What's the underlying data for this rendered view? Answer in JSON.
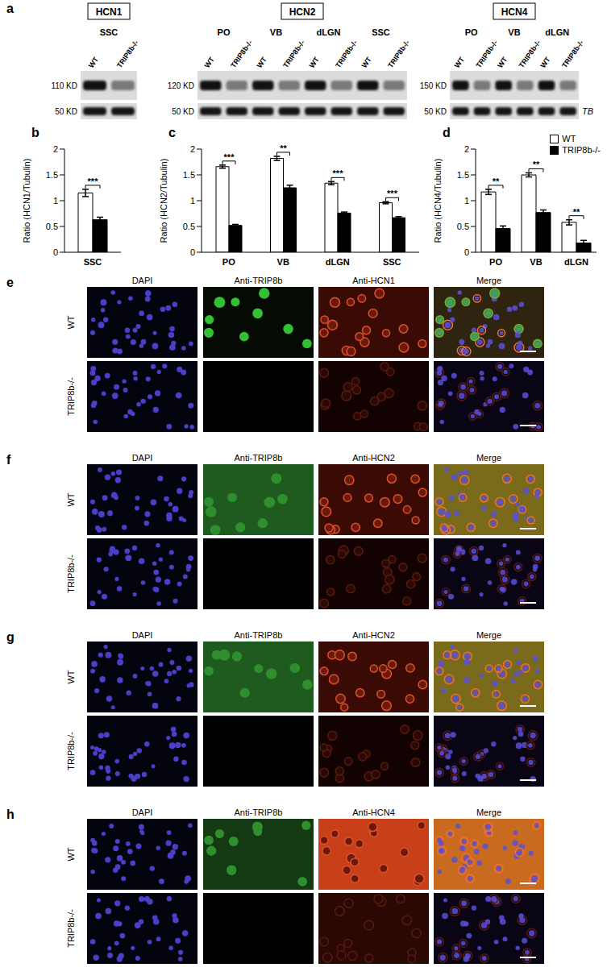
{
  "blot": {
    "label": "a",
    "lanes": [
      "WT",
      "TRIP8b-/-"
    ],
    "loading": {
      "kd": "50 KD",
      "name": "TB"
    },
    "groups": [
      {
        "title": "HCN1",
        "kd": "110 KD",
        "regions": [
          "SSC"
        ]
      },
      {
        "title": "HCN2",
        "kd": "120 KD",
        "regions": [
          "PO",
          "VB",
          "dLGN",
          "SSC"
        ]
      },
      {
        "title": "HCN4",
        "kd": "150 KD",
        "regions": [
          "PO",
          "VB",
          "dLGN"
        ]
      }
    ]
  },
  "chart_data": [
    {
      "label": "b",
      "type": "bar",
      "y_label": "Ratio (HCN1/Tubulin)",
      "categories": [
        "SSC"
      ],
      "series": [
        {
          "name": "WT",
          "color": "#ffffff",
          "values": [
            1.15
          ],
          "errors": [
            0.07
          ]
        },
        {
          "name": "TRIP8b-/-",
          "color": "#000000",
          "values": [
            0.63
          ],
          "errors": [
            0.05
          ]
        }
      ],
      "significance": [
        "***"
      ],
      "ylim": [
        0,
        2
      ],
      "yticks": [
        0,
        0.5,
        1,
        1.5,
        2
      ]
    },
    {
      "label": "c",
      "type": "bar",
      "y_label": "Ratio (HCN2/Tubulin)",
      "categories": [
        "PO",
        "VB",
        "dLGN",
        "SSC"
      ],
      "series": [
        {
          "name": "WT",
          "color": "#ffffff",
          "values": [
            1.66,
            1.82,
            1.34,
            0.96
          ],
          "errors": [
            0.03,
            0.04,
            0.03,
            0.02
          ]
        },
        {
          "name": "TRIP8b-/-",
          "color": "#000000",
          "values": [
            0.52,
            1.25,
            0.76,
            0.67
          ],
          "errors": [
            0.02,
            0.05,
            0.02,
            0.02
          ]
        }
      ],
      "significance": [
        "***",
        "**",
        "***",
        "***"
      ],
      "ylim": [
        0,
        2
      ],
      "yticks": [
        0,
        0.5,
        1,
        1.5,
        2
      ]
    },
    {
      "label": "d",
      "type": "bar",
      "y_label": "Ratio (HCN4/Tubulin)",
      "categories": [
        "PO",
        "VB",
        "dLGN"
      ],
      "series": [
        {
          "name": "WT",
          "color": "#ffffff",
          "values": [
            1.17,
            1.5,
            0.58
          ],
          "errors": [
            0.05,
            0.04,
            0.05
          ]
        },
        {
          "name": "TRIP8b-/-",
          "color": "#000000",
          "values": [
            0.46,
            0.77,
            0.18
          ],
          "errors": [
            0.05,
            0.05,
            0.05
          ]
        }
      ],
      "significance": [
        "**",
        "**",
        "**"
      ],
      "ylim": [
        0,
        2
      ],
      "yticks": [
        0,
        0.5,
        1,
        1.5,
        2
      ],
      "legend": "top-right"
    }
  ],
  "images": [
    {
      "label": "e",
      "columns": [
        "DAPI",
        "Anti-TRIP8b",
        "Anti-HCN1",
        "Merge"
      ],
      "rows": [
        "WT",
        "TRIP8b-/-"
      ]
    },
    {
      "label": "f",
      "columns": [
        "DAPI",
        "Anti-TRIP8b",
        "Anti-HCN2",
        "Merge"
      ],
      "rows": [
        "WT",
        "TRIP8b-/-"
      ]
    },
    {
      "label": "g",
      "columns": [
        "DAPI",
        "Anti-TRIP8b",
        "Anti-HCN2",
        "Merge"
      ],
      "rows": [
        "WT",
        "TRIP8b-/-"
      ]
    },
    {
      "label": "h",
      "columns": [
        "DAPI",
        "Anti-TRIP8b",
        "Anti-HCN4",
        "Merge"
      ],
      "rows": [
        "WT",
        "TRIP8b-/-"
      ]
    }
  ]
}
